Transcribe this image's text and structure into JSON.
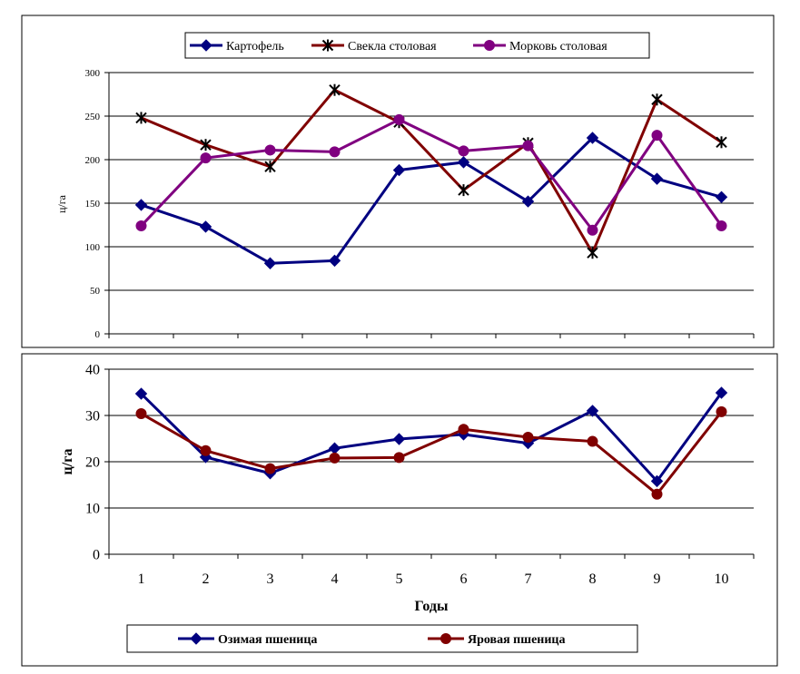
{
  "chart_data": [
    {
      "type": "line",
      "title": "",
      "xlabel": "",
      "ylabel": "ц/га",
      "ylim": [
        0,
        300
      ],
      "yticks": [
        0,
        50,
        100,
        150,
        200,
        250,
        300
      ],
      "x": [
        1,
        2,
        3,
        4,
        5,
        6,
        7,
        8,
        9,
        10
      ],
      "show_x_tick_labels": false,
      "grid": "horizontal",
      "legend_position": "top",
      "series": [
        {
          "name": "Картофель",
          "color": "#000080",
          "marker": "diamond",
          "values": [
            148,
            123,
            81,
            84,
            188,
            197,
            152,
            225,
            178,
            157
          ]
        },
        {
          "name": "Свекла столовая",
          "color": "#800000",
          "marker": "star",
          "values": [
            248,
            217,
            192,
            280,
            243,
            165,
            219,
            93,
            269,
            220
          ]
        },
        {
          "name": "Морковь столовая",
          "color": "#800080",
          "marker": "circle",
          "values": [
            124,
            202,
            211,
            209,
            246,
            210,
            216,
            119,
            228,
            124
          ]
        }
      ]
    },
    {
      "type": "line",
      "title": "",
      "xlabel": "Годы",
      "ylabel": "ц/га",
      "ylim": [
        0,
        40
      ],
      "yticks": [
        0,
        10,
        20,
        30,
        40
      ],
      "x": [
        1,
        2,
        3,
        4,
        5,
        6,
        7,
        8,
        9,
        10
      ],
      "show_x_tick_labels": true,
      "grid": "horizontal",
      "legend_position": "bottom",
      "series": [
        {
          "name": "Озимая пшеница",
          "color": "#000080",
          "marker": "diamond",
          "values": [
            34.7,
            21.0,
            17.5,
            22.9,
            24.9,
            25.9,
            24.0,
            31.0,
            15.8,
            34.9
          ]
        },
        {
          "name": "Яровая пшеница",
          "color": "#800000",
          "marker": "circle",
          "values": [
            30.4,
            22.4,
            18.5,
            20.8,
            20.9,
            27.0,
            25.3,
            24.4,
            13.0,
            30.8
          ]
        }
      ]
    }
  ]
}
